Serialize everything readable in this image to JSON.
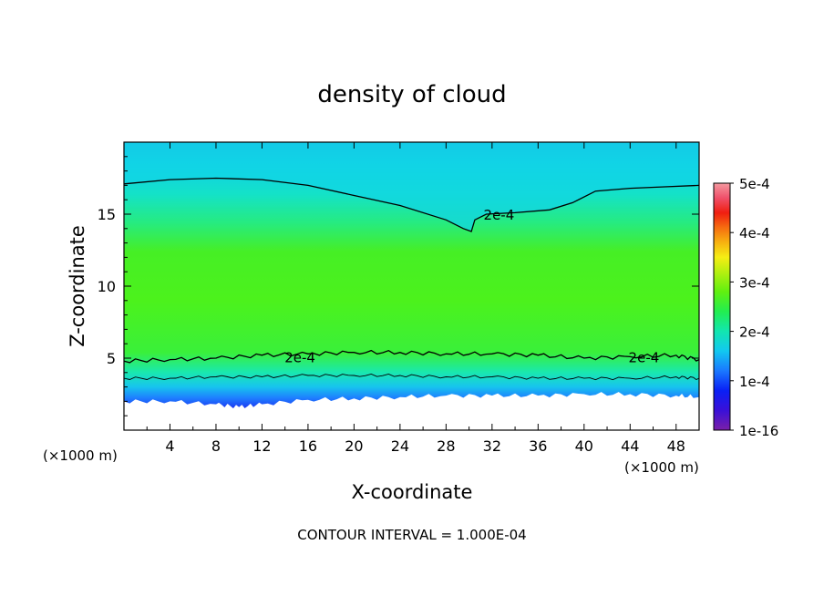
{
  "chart_data": {
    "type": "heatmap",
    "title": "density of cloud",
    "xlabel": "X-coordinate",
    "ylabel": "Z-coordinate",
    "x_unit": "(×1000 m)",
    "x_unit_right": "(×1000 m)",
    "xlim": [
      0,
      50
    ],
    "ylim": [
      0,
      20
    ],
    "x_ticks": [
      4,
      8,
      12,
      16,
      20,
      24,
      28,
      32,
      36,
      40,
      44,
      48
    ],
    "x_tick_labels": [
      "4",
      "8",
      "12",
      "16",
      "20",
      "24",
      "28",
      "32",
      "36",
      "40",
      "44",
      "48"
    ],
    "y_ticks": [
      5,
      10,
      15
    ],
    "y_tick_labels": [
      "5",
      "10",
      "15"
    ],
    "colorbar": {
      "min": 0,
      "max": 0.0005,
      "tick_values": [
        0,
        0.0001,
        0.0002,
        0.0003,
        0.0004,
        0.0005
      ],
      "tick_labels": [
        "1e-16",
        "1e-4",
        "2e-4",
        "3e-4",
        "4e-4",
        "5e-4"
      ]
    },
    "contour_level": 0.0002,
    "contour_labels": [
      {
        "text": "2e-4",
        "x": 32.6,
        "z": 15.0
      },
      {
        "text": "2e-4",
        "x": 15.3,
        "z": 5.1
      },
      {
        "text": "2e-4",
        "x": 45.2,
        "z": 5.1
      }
    ],
    "upper_contour_2e-4": {
      "x": [
        0,
        4,
        8,
        12,
        16,
        20,
        24,
        28,
        29.5,
        30.2,
        30.5,
        31.5,
        34,
        37,
        39,
        41,
        44,
        47,
        50
      ],
      "z": [
        17.1,
        17.4,
        17.5,
        17.4,
        17.0,
        16.3,
        15.6,
        14.6,
        14.0,
        13.8,
        14.6,
        15.0,
        15.1,
        15.3,
        15.8,
        16.6,
        16.8,
        16.9,
        17.0
      ]
    },
    "lower_contour_2e-4": {
      "x": [
        0,
        4,
        8,
        12,
        16,
        20,
        24,
        28,
        32,
        36,
        40,
        44,
        48,
        50
      ],
      "z": [
        4.8,
        4.9,
        5.0,
        5.2,
        5.3,
        5.4,
        5.4,
        5.3,
        5.3,
        5.2,
        5.0,
        5.1,
        5.2,
        4.9
      ]
    },
    "lower_contour_1e-4": {
      "x": [
        0,
        4,
        8,
        12,
        16,
        20,
        24,
        28,
        32,
        36,
        40,
        44,
        48,
        50
      ],
      "z": [
        3.6,
        3.6,
        3.7,
        3.7,
        3.8,
        3.8,
        3.8,
        3.7,
        3.7,
        3.6,
        3.6,
        3.6,
        3.7,
        3.6
      ]
    },
    "cloud_base_z": {
      "x": [
        0,
        4,
        8,
        10,
        12,
        16,
        20,
        24,
        28,
        32,
        36,
        40,
        44,
        48,
        50
      ],
      "z": [
        2.0,
        2.0,
        1.8,
        1.6,
        1.8,
        2.1,
        2.2,
        2.3,
        2.4,
        2.4,
        2.4,
        2.5,
        2.5,
        2.4,
        2.3
      ]
    }
  },
  "footer": {
    "contour_interval_text": "CONTOUR INTERVAL = 1.000E-04"
  }
}
